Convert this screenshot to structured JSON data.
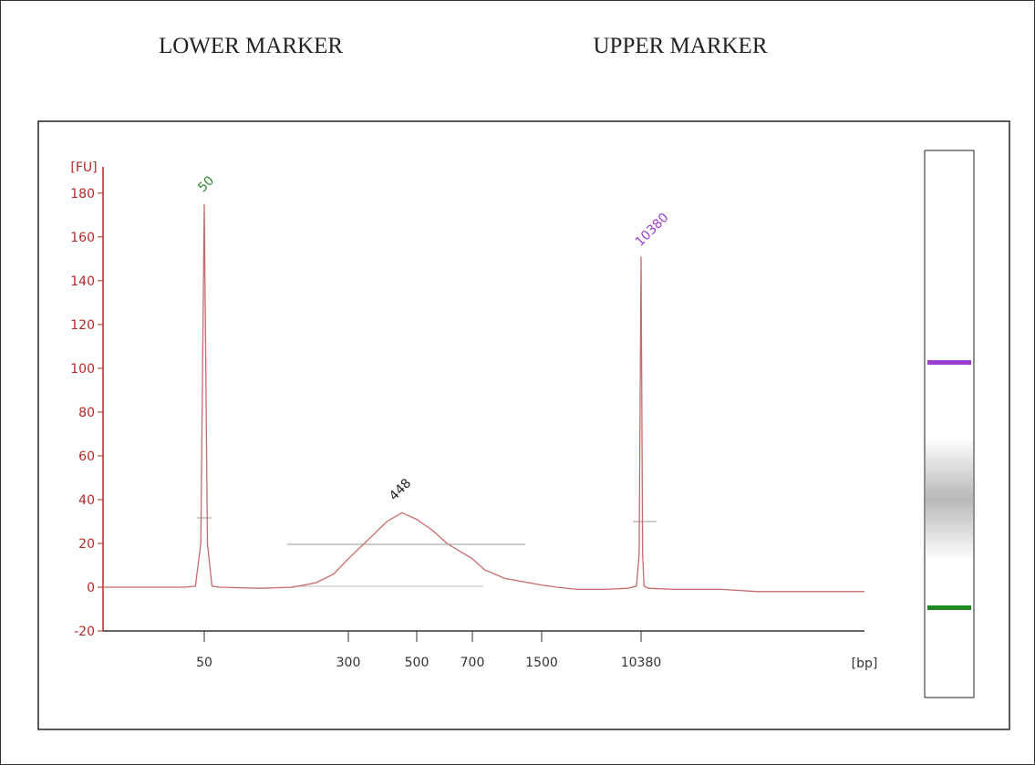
{
  "header": {
    "left": "LOWER MARKER",
    "right": "UPPER MARKER"
  },
  "chart_data": {
    "type": "line",
    "x_label": "[bp]",
    "y_label": "[FU]",
    "xlim": [
      15,
      800000
    ],
    "ylim": [
      -20,
      192
    ],
    "xticks": [
      50,
      300,
      500,
      700,
      1500,
      10380
    ],
    "yticks": [
      -20,
      0,
      20,
      40,
      60,
      80,
      100,
      120,
      140,
      160,
      180
    ],
    "x": [
      15,
      40,
      45,
      48,
      50,
      52,
      55,
      60,
      100,
      150,
      200,
      250,
      300,
      350,
      400,
      448,
      500,
      550,
      600,
      700,
      800,
      1000,
      1500,
      2000,
      3000,
      5000,
      8000,
      9500,
      10000,
      10380,
      10700,
      11000,
      12000,
      20000,
      50000,
      100000,
      800000
    ],
    "values": [
      0,
      0,
      0.5,
      20,
      175,
      20,
      0.5,
      0,
      -0.5,
      0,
      2,
      6,
      13,
      22,
      30,
      34,
      31,
      26,
      20,
      13,
      8,
      4,
      1,
      0,
      -1,
      -1,
      -0.5,
      0.5,
      15,
      151,
      15,
      0.5,
      -0.5,
      -1,
      -1,
      -2,
      -2
    ],
    "color": "#c86a6a",
    "axis_color": "#b02a2a",
    "annotations": [
      {
        "text": "50",
        "color": "#2f8a2f"
      },
      {
        "text": "448",
        "color": "#222222"
      },
      {
        "text": "10380",
        "color": "#9a40d0"
      }
    ]
  }
}
